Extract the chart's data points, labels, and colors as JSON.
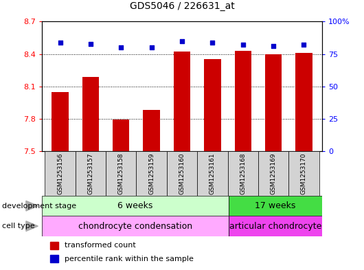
{
  "title": "GDS5046 / 226631_at",
  "samples": [
    "GSM1253156",
    "GSM1253157",
    "GSM1253158",
    "GSM1253159",
    "GSM1253160",
    "GSM1253161",
    "GSM1253168",
    "GSM1253169",
    "GSM1253170"
  ],
  "bar_values": [
    8.05,
    8.19,
    7.79,
    7.88,
    8.42,
    8.35,
    8.43,
    8.4,
    8.41
  ],
  "percentile_values": [
    84,
    83,
    80,
    80,
    85,
    84,
    82,
    81,
    82
  ],
  "ylim": [
    7.5,
    8.7
  ],
  "yticks": [
    7.5,
    7.8,
    8.1,
    8.4,
    8.7
  ],
  "right_yticks": [
    0,
    25,
    50,
    75,
    100
  ],
  "right_ylim": [
    0,
    100
  ],
  "bar_color": "#cc0000",
  "dot_color": "#0000cc",
  "dev_stage_6w": "6 weeks",
  "dev_stage_17w": "17 weeks",
  "cell_type_chondro": "chondrocyte condensation",
  "cell_type_articular": "articular chondrocyte",
  "group1_count": 6,
  "group2_count": 3,
  "dev_stage_color_6w": "#ccffcc",
  "dev_stage_color_17w": "#44dd44",
  "cell_type_color_chondro": "#ffaaff",
  "cell_type_color_articular": "#ee44ee",
  "legend_bar_label": "transformed count",
  "legend_dot_label": "percentile rank within the sample",
  "title_fontsize": 10,
  "tick_fontsize": 8,
  "label_fontsize": 9,
  "sample_fontsize": 6.5,
  "legend_fontsize": 8,
  "row_label_fontsize": 8
}
